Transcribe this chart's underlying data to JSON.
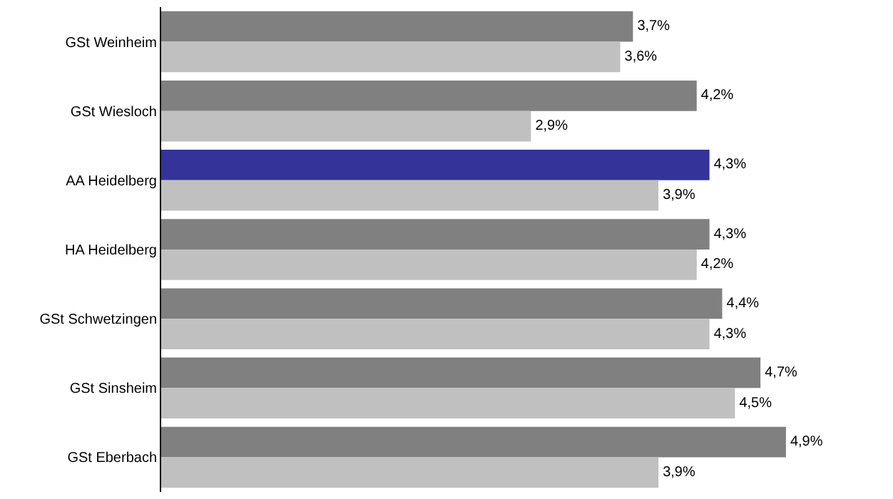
{
  "chart_data": {
    "type": "bar",
    "orientation": "horizontal",
    "categories": [
      "GSt Weinheim",
      "GSt Wiesloch",
      "AA Heidelberg",
      "HA Heidelberg",
      "GSt Schwetzingen",
      "GSt Sinsheim",
      "GSt Eberbach"
    ],
    "series": [
      {
        "colors": [
          "#808080",
          "#808080",
          "#333399",
          "#808080",
          "#808080",
          "#808080",
          "#808080"
        ],
        "values": [
          3.7,
          4.2,
          4.3,
          4.3,
          4.4,
          4.7,
          4.9
        ],
        "value_labels": [
          "3,7%",
          "4,2%",
          "4,3%",
          "4,3%",
          "4,4%",
          "4,7%",
          "4,9%"
        ]
      },
      {
        "color": "#c0c0c0",
        "values": [
          3.6,
          2.9,
          3.9,
          4.2,
          4.3,
          4.5,
          3.9
        ],
        "value_labels": [
          "3,6%",
          "2,9%",
          "3,9%",
          "4,2%",
          "4,3%",
          "4,5%",
          "3,9%"
        ]
      }
    ],
    "tick_labels": "y"
  }
}
